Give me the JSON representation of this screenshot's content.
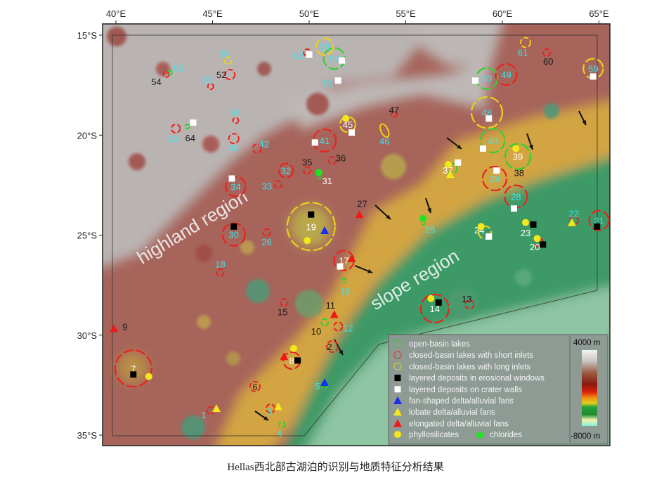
{
  "figure": {
    "caption": "Hellas西北部古湖泊的识别与地质特征分析结果",
    "lon_ticks": [
      "40°E",
      "45°E",
      "50°E",
      "55°E",
      "60°E",
      "65°E"
    ],
    "lat_ticks": [
      "15°S",
      "20°S",
      "25°S",
      "30°S",
      "35°S"
    ],
    "lon_values": [
      40,
      45,
      50,
      55,
      60,
      65
    ],
    "lat_values": [
      15,
      20,
      25,
      30,
      35
    ],
    "extent": {
      "lon": [
        39.35,
        65.6
      ],
      "lat": [
        14.4,
        35.5
      ]
    },
    "regions": [
      {
        "label": "highland region",
        "lon": 44.7,
        "lat": 25.7
      },
      {
        "label": "slope region",
        "lon": 56.5,
        "lat": 27.0
      }
    ]
  },
  "colors": {
    "open": "#2fd12f",
    "short": "#e8231f",
    "long": "#e8d21c",
    "cyan": "#3fe3ea",
    "black": "#1a1a1a",
    "white": "#ffffff"
  },
  "lakes": [
    {
      "id": "1",
      "type": "short",
      "lon": 44.9,
      "lat": 33.7,
      "label_color": "cyan"
    },
    {
      "id": "2",
      "type": "short",
      "lon": 51.2,
      "lat": 30.5,
      "label_color": "black"
    },
    {
      "id": "3",
      "type": "short",
      "lon": 48.0,
      "lat": 33.6,
      "label_color": "cyan"
    },
    {
      "id": "4",
      "type": "open",
      "lon": 48.6,
      "lat": 34.4,
      "label_color": "cyan"
    },
    {
      "id": "5",
      "type": "open",
      "lon": 50.8,
      "lat": 32.4,
      "label_color": "cyan"
    },
    {
      "id": "6",
      "type": "short",
      "lon": 47.2,
      "lat": 32.5,
      "label_color": "black"
    },
    {
      "id": "7",
      "type": "short",
      "lon": 40.9,
      "lat": 31.6,
      "label_color": "white"
    },
    {
      "id": "8",
      "type": "short",
      "lon": 49.1,
      "lat": 31.2,
      "label_color": "white"
    },
    {
      "id": "9",
      "type": "none",
      "lon": 40.1,
      "lat": 29.5,
      "label_color": "black"
    },
    {
      "id": "10",
      "type": "open",
      "lon": 50.8,
      "lat": 29.3,
      "label_color": "black"
    },
    {
      "id": "11",
      "type": "none",
      "lon": 51.1,
      "lat": 28.7,
      "label_color": "black"
    },
    {
      "id": "12",
      "type": "short",
      "lon": 51.5,
      "lat": 29.5,
      "label_color": "cyan"
    },
    {
      "id": "13",
      "type": "short",
      "lon": 58.3,
      "lat": 28.4,
      "label_color": "black"
    },
    {
      "id": "14",
      "type": "short",
      "lon": 56.5,
      "lat": 28.6,
      "label_color": "white"
    },
    {
      "id": "15",
      "type": "short",
      "lon": 48.7,
      "lat": 28.3,
      "label_color": "black"
    },
    {
      "id": "16",
      "type": "open",
      "lon": 51.8,
      "lat": 27.2,
      "label_color": "cyan"
    },
    {
      "id": "17",
      "type": "short",
      "lon": 51.8,
      "lat": 26.2,
      "label_color": "white"
    },
    {
      "id": "18",
      "type": "short",
      "lon": 45.4,
      "lat": 26.8,
      "label_color": "cyan"
    },
    {
      "id": "19",
      "type": "long",
      "lon": 50.1,
      "lat": 24.5,
      "label_color": "white"
    },
    {
      "id": "20",
      "type": "short",
      "lon": 61.9,
      "lat": 25.3,
      "label_color": "white"
    },
    {
      "id": "21",
      "type": "short",
      "lon": 65.0,
      "lat": 24.2,
      "label_color": "cyan"
    },
    {
      "id": "22",
      "type": "short",
      "lon": 63.7,
      "lat": 24.2,
      "label_color": "cyan"
    },
    {
      "id": "23",
      "type": "none",
      "lon": 61.2,
      "lat": 24.8,
      "label_color": "white"
    },
    {
      "id": "24",
      "type": "long",
      "lon": 59.1,
      "lat": 24.8,
      "label_color": "white"
    },
    {
      "id": "25",
      "type": "open",
      "lon": 55.9,
      "lat": 24.3,
      "label_color": "cyan"
    },
    {
      "id": "26",
      "type": "short",
      "lon": 47.8,
      "lat": 24.8,
      "label_color": "cyan"
    },
    {
      "id": "27",
      "type": "none",
      "lon": 52.6,
      "lat": 23.7,
      "label_color": "black"
    },
    {
      "id": "28",
      "type": "short",
      "lon": 60.7,
      "lat": 23.0,
      "label_color": "cyan"
    },
    {
      "id": "29",
      "type": "short",
      "lon": 59.6,
      "lat": 22.1,
      "label_color": "cyan"
    },
    {
      "id": "30",
      "type": "short",
      "lon": 46.1,
      "lat": 24.9,
      "label_color": "cyan"
    },
    {
      "id": "31",
      "type": "open",
      "lon": 50.5,
      "lat": 22.0,
      "label_color": "white"
    },
    {
      "id": "32",
      "type": "short",
      "lon": 48.8,
      "lat": 21.7,
      "label_color": "cyan"
    },
    {
      "id": "33",
      "type": "short",
      "lon": 48.4,
      "lat": 22.4,
      "label_color": "cyan"
    },
    {
      "id": "34",
      "type": "short",
      "lon": 46.2,
      "lat": 22.5,
      "label_color": "cyan"
    },
    {
      "id": "35",
      "type": "short",
      "lon": 49.9,
      "lat": 21.7,
      "label_color": "black"
    },
    {
      "id": "36",
      "type": "short",
      "lon": 51.2,
      "lat": 21.2,
      "label_color": "black"
    },
    {
      "id": "37",
      "type": "open",
      "lon": 57.4,
      "lat": 21.6,
      "label_color": "white"
    },
    {
      "id": "38",
      "type": "none",
      "lon": 60.5,
      "lat": 21.8,
      "label_color": "black"
    },
    {
      "id": "39",
      "type": "open",
      "lon": 60.8,
      "lat": 21.0,
      "label_color": "white"
    },
    {
      "id": "40",
      "type": "open",
      "lon": 59.5,
      "lat": 20.2,
      "label_color": "cyan"
    },
    {
      "id": "41",
      "type": "short",
      "lon": 50.8,
      "lat": 20.2,
      "label_color": "cyan"
    },
    {
      "id": "42",
      "type": "short",
      "lon": 47.3,
      "lat": 20.6,
      "label_color": "cyan"
    },
    {
      "id": "43",
      "type": "short",
      "lon": 46.1,
      "lat": 20.1,
      "label_color": "cyan"
    },
    {
      "id": "44",
      "type": "short",
      "lon": 46.2,
      "lat": 19.2,
      "label_color": "cyan"
    },
    {
      "id": "45",
      "type": "long",
      "lon": 52.0,
      "lat": 19.4,
      "label_color": "white"
    },
    {
      "id": "46",
      "type": "long",
      "lon": 53.9,
      "lat": 19.7,
      "label_color": "cyan"
    },
    {
      "id": "47",
      "type": "short",
      "lon": 54.4,
      "lat": 18.9,
      "label_color": "black"
    },
    {
      "id": "48",
      "type": "long",
      "lon": 59.2,
      "lat": 18.8,
      "label_color": "cyan"
    },
    {
      "id": "49",
      "type": "short",
      "lon": 60.2,
      "lat": 16.9,
      "label_color": "cyan"
    },
    {
      "id": "50",
      "type": "open",
      "lon": 59.2,
      "lat": 17.1,
      "label_color": "cyan"
    },
    {
      "id": "51",
      "type": "open",
      "lon": 51.5,
      "lat": 17.2,
      "label_color": "cyan"
    },
    {
      "id": "52",
      "type": "short",
      "lon": 45.9,
      "lat": 16.9,
      "label_color": "black"
    },
    {
      "id": "53",
      "type": "short",
      "lon": 44.9,
      "lat": 17.5,
      "label_color": "cyan"
    },
    {
      "id": "54",
      "type": "short",
      "lon": 42.6,
      "lat": 16.9,
      "label_color": "black"
    },
    {
      "id": "55",
      "type": "open",
      "lon": 42.8,
      "lat": 16.8,
      "label_color": "cyan"
    },
    {
      "id": "56",
      "type": "long",
      "lon": 45.8,
      "lat": 16.2,
      "label_color": "cyan"
    },
    {
      "id": "57",
      "type": "open",
      "lon": 51.3,
      "lat": 16.1,
      "label_color": "cyan"
    },
    {
      "id": "58",
      "type": "long",
      "lon": 50.8,
      "lat": 15.5,
      "label_color": "cyan"
    },
    {
      "id": "59",
      "type": "long",
      "lon": 64.7,
      "lat": 16.6,
      "label_color": "cyan"
    },
    {
      "id": "60",
      "type": "short",
      "lon": 62.3,
      "lat": 15.8,
      "label_color": "black"
    },
    {
      "id": "61",
      "type": "long",
      "lon": 61.2,
      "lat": 15.3,
      "label_color": "cyan"
    },
    {
      "id": "62",
      "type": "short",
      "lon": 49.9,
      "lat": 15.8,
      "label_color": "cyan"
    },
    {
      "id": "63",
      "type": "short",
      "lon": 43.1,
      "lat": 19.6,
      "label_color": "cyan"
    },
    {
      "id": "64",
      "type": "open",
      "lon": 43.7,
      "lat": 19.5,
      "label_color": "black"
    }
  ],
  "markers": {
    "layered_erosional": [
      [
        40.9,
        31.9
      ],
      [
        49.4,
        31.2
      ],
      [
        56.7,
        28.3
      ],
      [
        50.1,
        23.9
      ],
      [
        62.1,
        25.4
      ],
      [
        64.9,
        24.5
      ],
      [
        61.6,
        24.4
      ],
      [
        46.1,
        24.5
      ]
    ],
    "layered_crater_walls": [
      [
        51.6,
        26.5
      ],
      [
        59.3,
        25.0
      ],
      [
        60.6,
        23.6
      ],
      [
        59.7,
        21.7
      ],
      [
        46.0,
        22.1
      ],
      [
        57.7,
        21.3
      ],
      [
        59.0,
        20.6
      ],
      [
        59.3,
        19.1
      ],
      [
        58.6,
        17.2
      ],
      [
        64.7,
        17.0
      ],
      [
        50.0,
        15.9
      ],
      [
        51.7,
        16.2
      ],
      [
        51.5,
        17.2
      ],
      [
        44.0,
        19.3
      ],
      [
        52.2,
        19.8
      ],
      [
        50.3,
        20.3
      ]
    ],
    "fan_shaped": [
      [
        50.8,
        24.7
      ],
      [
        50.8,
        32.3
      ]
    ],
    "lobate": [
      [
        45.2,
        33.6
      ],
      [
        48.4,
        33.5
      ],
      [
        57.3,
        21.9
      ],
      [
        63.6,
        24.3
      ]
    ],
    "elongated": [
      [
        39.9,
        29.6
      ],
      [
        48.7,
        31.0
      ],
      [
        51.3,
        28.9
      ],
      [
        52.2,
        26.1
      ],
      [
        52.6,
        23.9
      ]
    ],
    "phyllosilicates": [
      [
        49.9,
        25.2
      ],
      [
        41.7,
        32.0
      ],
      [
        49.2,
        30.6
      ],
      [
        56.3,
        28.1
      ],
      [
        61.8,
        25.1
      ],
      [
        61.2,
        24.3
      ],
      [
        58.9,
        24.5
      ],
      [
        57.2,
        21.4
      ],
      [
        60.7,
        20.6
      ],
      [
        51.9,
        19.1
      ]
    ],
    "chlorides": [
      [
        50.5,
        21.8
      ],
      [
        55.9,
        24.1
      ]
    ]
  },
  "legend": {
    "items": [
      {
        "symbol": "open",
        "label": "open-basin lakes"
      },
      {
        "symbol": "short",
        "label": "closed-basin lakes with short inlets"
      },
      {
        "symbol": "long",
        "label": "closed-basin lakes with long inlets"
      },
      {
        "symbol": "black-square",
        "label": "layered deposits in erosional windows"
      },
      {
        "symbol": "white-square",
        "label": "layered deposits on crater walls"
      },
      {
        "symbol": "blue-triangle",
        "label": "fan-shaped delta/alluvial fans"
      },
      {
        "symbol": "yellow-triangle",
        "label": "lobate delta/alluvial fans"
      },
      {
        "symbol": "red-triangle",
        "label": "elongated delta/alluvial fans"
      }
    ],
    "phyllosilicates": "phyllosilicates",
    "chlorides": "chlorides",
    "scale_max": "4000 m",
    "scale_min": "-8000 m"
  }
}
